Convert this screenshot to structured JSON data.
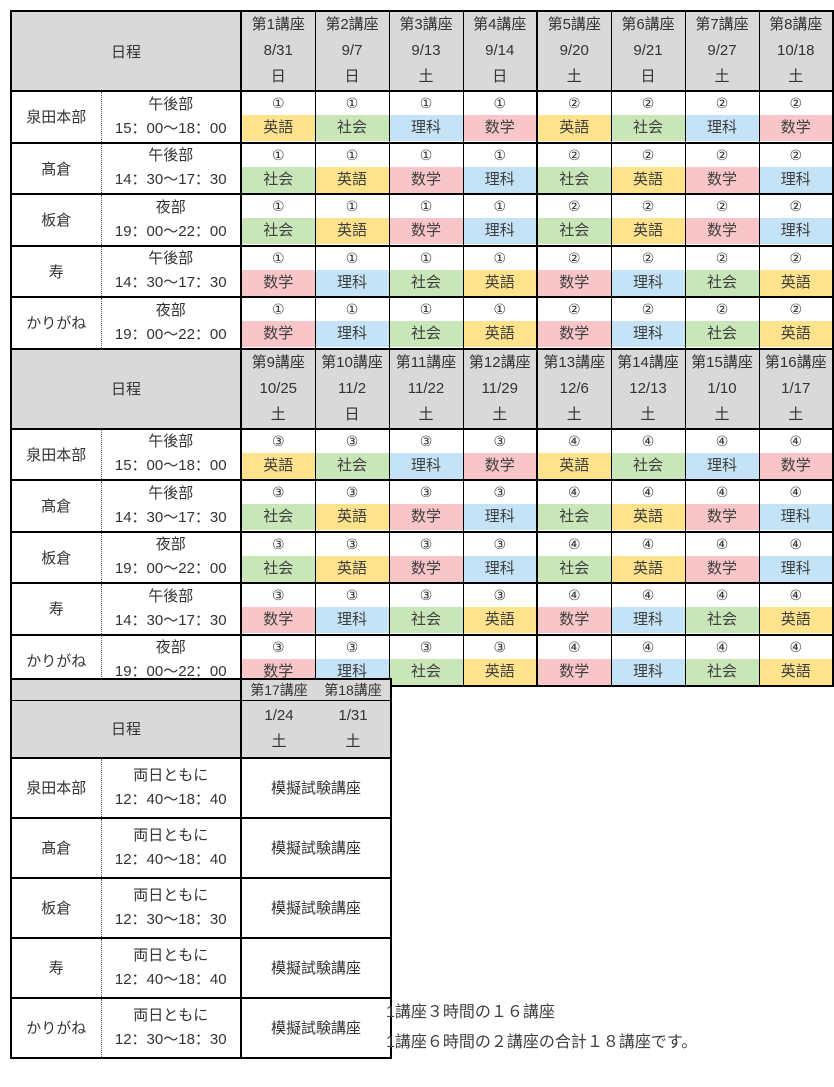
{
  "colors": {
    "header_bg": "#d9d9d9",
    "border": "#000000",
    "text": "#3f3f3f",
    "subjects": {
      "英語": "#ffe38c",
      "社会": "#c8e6b8",
      "理科": "#c5e3f7",
      "数学": "#f8c6c8"
    }
  },
  "header_label": "日程",
  "sections": [
    {
      "courses": [
        {
          "title": "第1講座",
          "date": "8/31",
          "day": "日"
        },
        {
          "title": "第2講座",
          "date": "9/7",
          "day": "日"
        },
        {
          "title": "第3講座",
          "date": "9/13",
          "day": "土"
        },
        {
          "title": "第4講座",
          "date": "9/14",
          "day": "日"
        },
        {
          "title": "第5講座",
          "date": "9/20",
          "day": "土"
        },
        {
          "title": "第6講座",
          "date": "9/21",
          "day": "日"
        },
        {
          "title": "第7講座",
          "date": "9/27",
          "day": "土"
        },
        {
          "title": "第8講座",
          "date": "10/18",
          "day": "土"
        }
      ],
      "rows": [
        {
          "site": "泉田本部",
          "part": "午後部",
          "time": "15：00～18：00",
          "cells": [
            [
              "①",
              "英語"
            ],
            [
              "①",
              "社会"
            ],
            [
              "①",
              "理科"
            ],
            [
              "①",
              "数学"
            ],
            [
              "②",
              "英語"
            ],
            [
              "②",
              "社会"
            ],
            [
              "②",
              "理科"
            ],
            [
              "②",
              "数学"
            ]
          ]
        },
        {
          "site": "髙倉",
          "part": "午後部",
          "time": "14：30～17：30",
          "cells": [
            [
              "①",
              "社会"
            ],
            [
              "①",
              "英語"
            ],
            [
              "①",
              "数学"
            ],
            [
              "①",
              "理科"
            ],
            [
              "②",
              "社会"
            ],
            [
              "②",
              "英語"
            ],
            [
              "②",
              "数学"
            ],
            [
              "②",
              "理科"
            ]
          ]
        },
        {
          "site": "板倉",
          "part": "夜部",
          "time": "19：00～22：00",
          "cells": [
            [
              "①",
              "社会"
            ],
            [
              "①",
              "英語"
            ],
            [
              "①",
              "数学"
            ],
            [
              "①",
              "理科"
            ],
            [
              "②",
              "社会"
            ],
            [
              "②",
              "英語"
            ],
            [
              "②",
              "数学"
            ],
            [
              "②",
              "理科"
            ]
          ]
        },
        {
          "site": "寿",
          "part": "午後部",
          "time": "14：30～17：30",
          "cells": [
            [
              "①",
              "数学"
            ],
            [
              "①",
              "理科"
            ],
            [
              "①",
              "社会"
            ],
            [
              "①",
              "英語"
            ],
            [
              "②",
              "数学"
            ],
            [
              "②",
              "理科"
            ],
            [
              "②",
              "社会"
            ],
            [
              "②",
              "英語"
            ]
          ]
        },
        {
          "site": "かりがね",
          "part": "夜部",
          "time": "19：00～22：00",
          "cells": [
            [
              "①",
              "数学"
            ],
            [
              "①",
              "理科"
            ],
            [
              "①",
              "社会"
            ],
            [
              "①",
              "英語"
            ],
            [
              "②",
              "数学"
            ],
            [
              "②",
              "理科"
            ],
            [
              "②",
              "社会"
            ],
            [
              "②",
              "英語"
            ]
          ]
        }
      ]
    },
    {
      "courses": [
        {
          "title": "第9講座",
          "date": "10/25",
          "day": "土"
        },
        {
          "title": "第10講座",
          "date": "11/2",
          "day": "日"
        },
        {
          "title": "第11講座",
          "date": "11/22",
          "day": "土"
        },
        {
          "title": "第12講座",
          "date": "11/29",
          "day": "土"
        },
        {
          "title": "第13講座",
          "date": "12/6",
          "day": "土"
        },
        {
          "title": "第14講座",
          "date": "12/13",
          "day": "土"
        },
        {
          "title": "第15講座",
          "date": "1/10",
          "day": "土"
        },
        {
          "title": "第16講座",
          "date": "1/17",
          "day": "土"
        }
      ],
      "rows": [
        {
          "site": "泉田本部",
          "part": "午後部",
          "time": "15：00～18：00",
          "cells": [
            [
              "③",
              "英語"
            ],
            [
              "③",
              "社会"
            ],
            [
              "③",
              "理科"
            ],
            [
              "③",
              "数学"
            ],
            [
              "④",
              "英語"
            ],
            [
              "④",
              "社会"
            ],
            [
              "④",
              "理科"
            ],
            [
              "④",
              "数学"
            ]
          ]
        },
        {
          "site": "髙倉",
          "part": "午後部",
          "time": "14：30～17：30",
          "cells": [
            [
              "③",
              "社会"
            ],
            [
              "③",
              "英語"
            ],
            [
              "③",
              "数学"
            ],
            [
              "③",
              "理科"
            ],
            [
              "④",
              "社会"
            ],
            [
              "④",
              "英語"
            ],
            [
              "④",
              "数学"
            ],
            [
              "④",
              "理科"
            ]
          ]
        },
        {
          "site": "板倉",
          "part": "夜部",
          "time": "19：00～22：00",
          "cells": [
            [
              "③",
              "社会"
            ],
            [
              "③",
              "英語"
            ],
            [
              "③",
              "数学"
            ],
            [
              "③",
              "理科"
            ],
            [
              "④",
              "社会"
            ],
            [
              "④",
              "英語"
            ],
            [
              "④",
              "数学"
            ],
            [
              "④",
              "理科"
            ]
          ]
        },
        {
          "site": "寿",
          "part": "午後部",
          "time": "14：30～17：30",
          "cells": [
            [
              "③",
              "数学"
            ],
            [
              "③",
              "理科"
            ],
            [
              "③",
              "社会"
            ],
            [
              "③",
              "英語"
            ],
            [
              "④",
              "数学"
            ],
            [
              "④",
              "理科"
            ],
            [
              "④",
              "社会"
            ],
            [
              "④",
              "英語"
            ]
          ]
        },
        {
          "site": "かりがね",
          "part": "夜部",
          "time": "19：00～22：00",
          "cells": [
            [
              "③",
              "数学"
            ],
            [
              "③",
              "理科"
            ],
            [
              "③",
              "社会"
            ],
            [
              "③",
              "英語"
            ],
            [
              "④",
              "数学"
            ],
            [
              "④",
              "理科"
            ],
            [
              "④",
              "社会"
            ],
            [
              "④",
              "英語"
            ]
          ]
        }
      ]
    }
  ],
  "exam_section": {
    "courses": [
      {
        "title": "第17講座",
        "date": "1/24",
        "day": "土"
      },
      {
        "title": "第18講座",
        "date": "1/31",
        "day": "土"
      }
    ],
    "rows": [
      {
        "site": "泉田本部",
        "part": "両日ともに",
        "time": "12：40～18：40",
        "label": "模擬試験講座"
      },
      {
        "site": "髙倉",
        "part": "両日ともに",
        "time": "12：40～18：40",
        "label": "模擬試験講座"
      },
      {
        "site": "板倉",
        "part": "両日ともに",
        "time": "12：30～18：30",
        "label": "模擬試験講座"
      },
      {
        "site": "寿",
        "part": "両日ともに",
        "time": "12：40～18：40",
        "label": "模擬試験講座"
      },
      {
        "site": "かりがね",
        "part": "両日ともに",
        "time": "12：30～18：30",
        "label": "模擬試験講座"
      }
    ]
  },
  "footnote": {
    "line1": "1講座３時間の１６講座",
    "line2": "1講座６時間の２講座の合計１８講座です。"
  }
}
